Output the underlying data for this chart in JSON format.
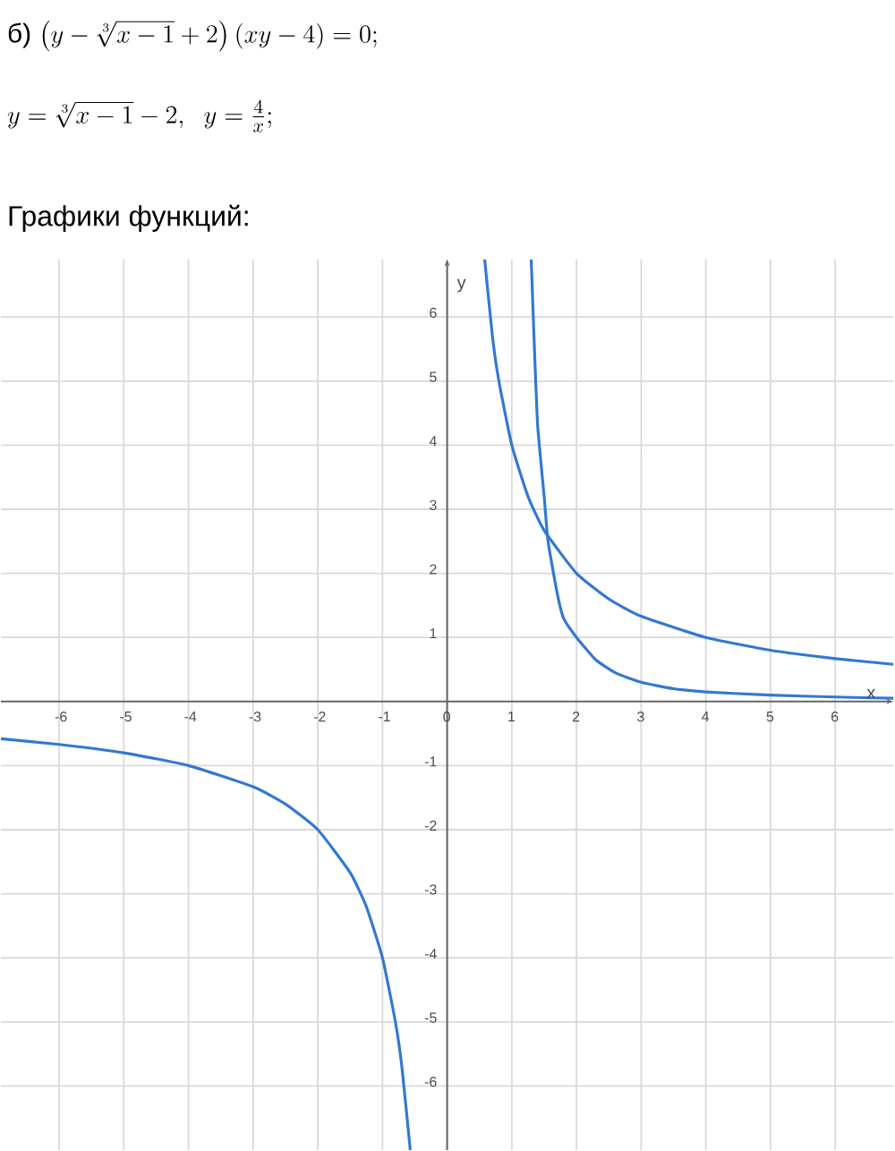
{
  "chart_data": {
    "type": "line",
    "title": "Графики функций:",
    "annotations": [
      "б)",
      "\\left(y-\\sqrt[3]{x-1}+2\\right)(xy-4)=0;",
      "y=\\sqrt[3]{x-1}-2,\\ \\ y=\\frac{4}{x};"
    ],
    "xlabel": "x",
    "ylabel": "y",
    "xlim": [
      -6.9,
      6.9
    ],
    "ylim": [
      -7,
      6.9
    ],
    "xticks": [
      -6,
      -5,
      -4,
      -3,
      -2,
      -1,
      0,
      1,
      2,
      3,
      4,
      5,
      6
    ],
    "yticks": [
      -6,
      -5,
      -4,
      -3,
      -2,
      -1,
      1,
      2,
      3,
      4,
      5,
      6
    ],
    "grid": true,
    "marker": "none",
    "line_style": "solid",
    "series": [
      {
        "color": "#3278d2",
        "x": [
          -6.9,
          -6,
          -5,
          -4,
          -3,
          -2.5,
          -2,
          -1.5,
          -1.25,
          -1,
          -0.8,
          -0.7,
          -0.57,
          null,
          0.58,
          0.7,
          0.8,
          1,
          1.25,
          1.5,
          2,
          2.5,
          3,
          4,
          5,
          6,
          6.9
        ],
        "values": [
          -0.58,
          -0.67,
          -0.8,
          -1,
          -1.33,
          -1.6,
          -2,
          -2.67,
          -3.2,
          -4,
          -5,
          -5.7,
          -7,
          null,
          6.9,
          5.7,
          5,
          4,
          3.2,
          2.67,
          2,
          1.6,
          1.33,
          1,
          0.8,
          0.67,
          0.58
        ]
      },
      {
        "color": "#3278d2",
        "x": [
          1.3,
          1.35,
          1.4,
          1.5,
          1.56,
          1.7,
          1.8,
          2,
          2.3,
          2.6,
          3,
          3.5,
          4,
          5,
          6,
          6.9
        ],
        "values": [
          6.9,
          5.5,
          4.3,
          3.2,
          2.5,
          1.7,
          1.3,
          1.0,
          0.65,
          0.45,
          0.3,
          0.2,
          0.15,
          0.1,
          0.07,
          0.05
        ]
      }
    ]
  }
}
